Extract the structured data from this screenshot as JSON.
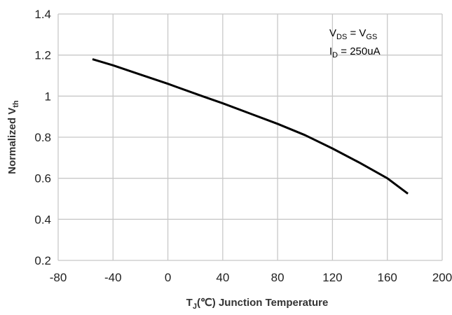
{
  "chart_data": {
    "type": "line",
    "xlabel": [
      "T",
      "J",
      "(℃) Junction Temperature"
    ],
    "ylabel": [
      "Normalized V",
      "th"
    ],
    "annotation": [
      [
        "V",
        "DS",
        " = V",
        "GS"
      ],
      [
        "I",
        "D",
        " = 250uA"
      ]
    ],
    "x": [
      -55,
      -40,
      -20,
      0,
      25,
      40,
      60,
      80,
      100,
      120,
      140,
      160,
      175
    ],
    "series": [
      {
        "color": "#000000",
        "values": [
          1.18,
          1.15,
          1.105,
          1.06,
          1.0,
          0.965,
          0.915,
          0.865,
          0.81,
          0.745,
          0.675,
          0.6,
          0.525
        ]
      }
    ],
    "xlim": [
      -80,
      200
    ],
    "xticks": [
      -80,
      -40,
      0,
      40,
      80,
      120,
      160,
      200
    ],
    "ylim": [
      0.2,
      1.4
    ],
    "yticks": [
      0.2,
      0.4,
      0.6,
      0.8,
      1,
      1.2,
      1.4
    ],
    "grid": true
  }
}
